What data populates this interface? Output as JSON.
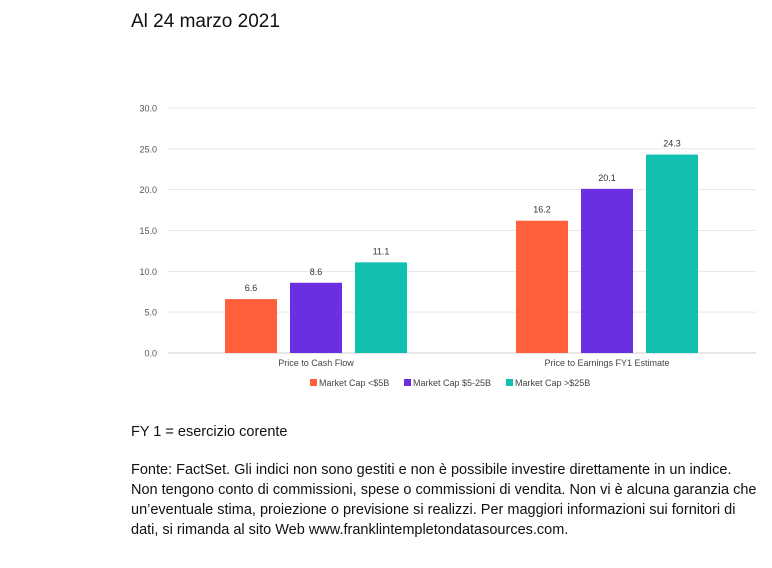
{
  "heading": "Al 24 marzo 2021",
  "chart_data": {
    "type": "bar",
    "categories": [
      "Price to Cash Flow",
      "Price to Earnings FY1 Estimate"
    ],
    "series": [
      {
        "name": "Market Cap <$5B",
        "values": [
          6.6,
          16.2
        ],
        "color": "#FF5F3A",
        "labels": [
          "6.6",
          "16.2"
        ]
      },
      {
        "name": "Market Cap $5-25B",
        "values": [
          8.6,
          20.1
        ],
        "color": "#6A2FE0",
        "labels": [
          "8.6",
          "20.1"
        ]
      },
      {
        "name": "Market Cap >$25B",
        "values": [
          11.1,
          24.3
        ],
        "color": "#12C0B2",
        "labels": [
          "11.1",
          "24.3"
        ]
      }
    ],
    "yticks": [
      "0.0",
      "5.0",
      "10.0",
      "15.0",
      "20.0",
      "25.0",
      "30.0"
    ],
    "ylim": [
      0,
      30
    ],
    "grid": true,
    "legend": "bottom",
    "xlabel": "",
    "ylabel": ""
  },
  "footnote": "FY 1 = esercizio corente",
  "source_lines": [
    "Fonte: FactSet. Gli indici non sono gestiti e non è possibile investire direttamente in un indice.",
    "Non tengono conto di commissioni, spese o commissioni di vendita. Non vi è alcuna garanzia che",
    "un’eventuale stima, proiezione o previsione si realizzi. Per maggiori informazioni sui fornitori di",
    "dati, si rimanda al sito Web www.franklintempletondatasources.com."
  ]
}
